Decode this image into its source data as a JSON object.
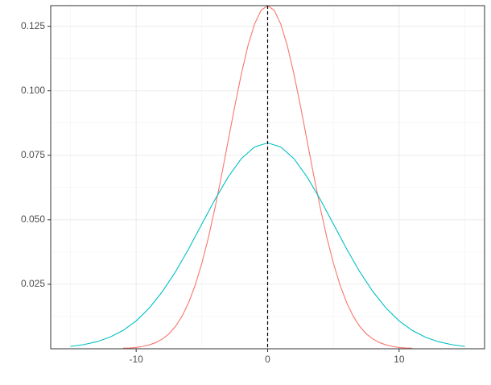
{
  "chart_data": {
    "type": "line",
    "series": [
      {
        "color": "#F8766D",
        "x": [
          -11,
          -10.5,
          -10,
          -9.5,
          -9,
          -8.5,
          -8,
          -7.5,
          -7,
          -6.5,
          -6,
          -5.5,
          -5,
          -4.5,
          -4,
          -3.5,
          -3,
          -2.5,
          -2,
          -1.5,
          -1,
          -0.5,
          0,
          0.5,
          1,
          1.5,
          2,
          2.5,
          3,
          3.5,
          4,
          4.5,
          5,
          5.5,
          6,
          6.5,
          7,
          7.5,
          8,
          8.5,
          9,
          9.5,
          10,
          10.5,
          11
        ],
        "values": [
          0.0002,
          0.0003,
          0.0005,
          0.0009,
          0.0015,
          0.0024,
          0.0038,
          0.0058,
          0.0087,
          0.0127,
          0.018,
          0.0248,
          0.0332,
          0.0432,
          0.0547,
          0.0673,
          0.0807,
          0.094,
          0.1065,
          0.1174,
          0.1258,
          0.1312,
          0.133,
          0.1312,
          0.1258,
          0.1174,
          0.1065,
          0.094,
          0.0807,
          0.0673,
          0.0547,
          0.0432,
          0.0332,
          0.0248,
          0.018,
          0.0127,
          0.0087,
          0.0058,
          0.0038,
          0.0024,
          0.0015,
          0.0009,
          0.0005,
          0.0003,
          0.0002
        ]
      },
      {
        "color": "#00BFC4",
        "x": [
          -15,
          -14,
          -13,
          -12,
          -11,
          -10,
          -9,
          -8,
          -7,
          -6,
          -5,
          -4,
          -3,
          -2,
          -1,
          0,
          1,
          2,
          3,
          4,
          5,
          6,
          7,
          8,
          9,
          10,
          11,
          12,
          13,
          14,
          15
        ],
        "values": [
          0.0009,
          0.0016,
          0.0027,
          0.0045,
          0.0071,
          0.0108,
          0.0158,
          0.0222,
          0.0299,
          0.0388,
          0.0484,
          0.0579,
          0.0666,
          0.0737,
          0.0782,
          0.0798,
          0.0782,
          0.0737,
          0.0666,
          0.0579,
          0.0484,
          0.0388,
          0.0299,
          0.0222,
          0.0158,
          0.0108,
          0.0071,
          0.0045,
          0.0027,
          0.0016,
          0.0009
        ]
      }
    ],
    "xlim": [
      -16.5,
      16.5
    ],
    "ylim": [
      0,
      0.133
    ],
    "xticks": [
      -10,
      0,
      10
    ],
    "yticks": [
      0.025,
      {
        "value": 0.05,
        "label": "0.050"
      },
      0.075,
      {
        "value": 0.1,
        "label": "0.100"
      },
      0.125
    ],
    "x_minor_grid": [
      -15,
      -5,
      5,
      15
    ],
    "y_minor_grid": [
      0.0125,
      0.0375,
      0.0625,
      0.0875,
      0.1125
    ],
    "vline": 0,
    "grid": true
  }
}
